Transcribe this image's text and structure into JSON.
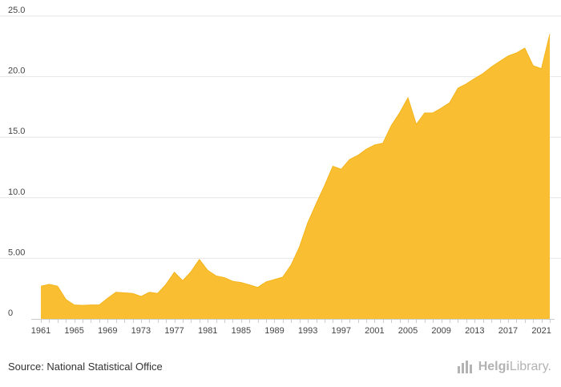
{
  "chart_data": {
    "type": "area",
    "x": [
      1961,
      1962,
      1963,
      1964,
      1965,
      1966,
      1967,
      1968,
      1969,
      1970,
      1971,
      1972,
      1973,
      1974,
      1975,
      1976,
      1977,
      1978,
      1979,
      1980,
      1981,
      1982,
      1983,
      1984,
      1985,
      1986,
      1987,
      1988,
      1989,
      1990,
      1991,
      1992,
      1993,
      1994,
      1995,
      1996,
      1997,
      1998,
      1999,
      2000,
      2001,
      2002,
      2003,
      2004,
      2005,
      2006,
      2007,
      2008,
      2009,
      2010,
      2011,
      2012,
      2013,
      2014,
      2015,
      2016,
      2017,
      2018,
      2019,
      2020,
      2021,
      2022
    ],
    "series": [
      {
        "values": [
          2.7,
          2.85,
          2.7,
          1.6,
          1.15,
          1.12,
          1.15,
          1.15,
          1.7,
          2.2,
          2.15,
          2.1,
          1.85,
          2.2,
          2.1,
          2.85,
          3.85,
          3.15,
          3.9,
          4.9,
          4.0,
          3.55,
          3.4,
          3.1,
          3.0,
          2.8,
          2.6,
          3.05,
          3.25,
          3.45,
          4.45,
          5.95,
          7.95,
          9.5,
          11.0,
          12.6,
          12.35,
          13.15,
          13.5,
          14.0,
          14.35,
          14.5,
          15.95,
          17.0,
          18.25,
          16.05,
          17.0,
          17.0,
          17.4,
          17.85,
          19.05,
          19.4,
          19.85,
          20.25,
          20.8,
          21.25,
          21.7,
          21.95,
          22.35,
          20.9,
          20.65,
          23.5
        ]
      }
    ],
    "x_ticks": [
      "1961",
      "1965",
      "1969",
      "1973",
      "1977",
      "1981",
      "1985",
      "1989",
      "1993",
      "1997",
      "2001",
      "2005",
      "2009",
      "2013",
      "2017",
      "2021"
    ],
    "y_ticks": [
      "0",
      "5.00",
      "10.0",
      "15.0",
      "20.0",
      "25.0"
    ],
    "ylim": [
      0,
      25
    ],
    "xlim": [
      1961,
      2022
    ],
    "grid": true,
    "fill_color": "#f9be31",
    "stroke_color": "#f5b41a",
    "title": "",
    "xlabel": "",
    "ylabel": ""
  },
  "footer": {
    "source": "Source: National Statistical Office",
    "brand_bold": "Helgi",
    "brand_rest": "Library."
  }
}
